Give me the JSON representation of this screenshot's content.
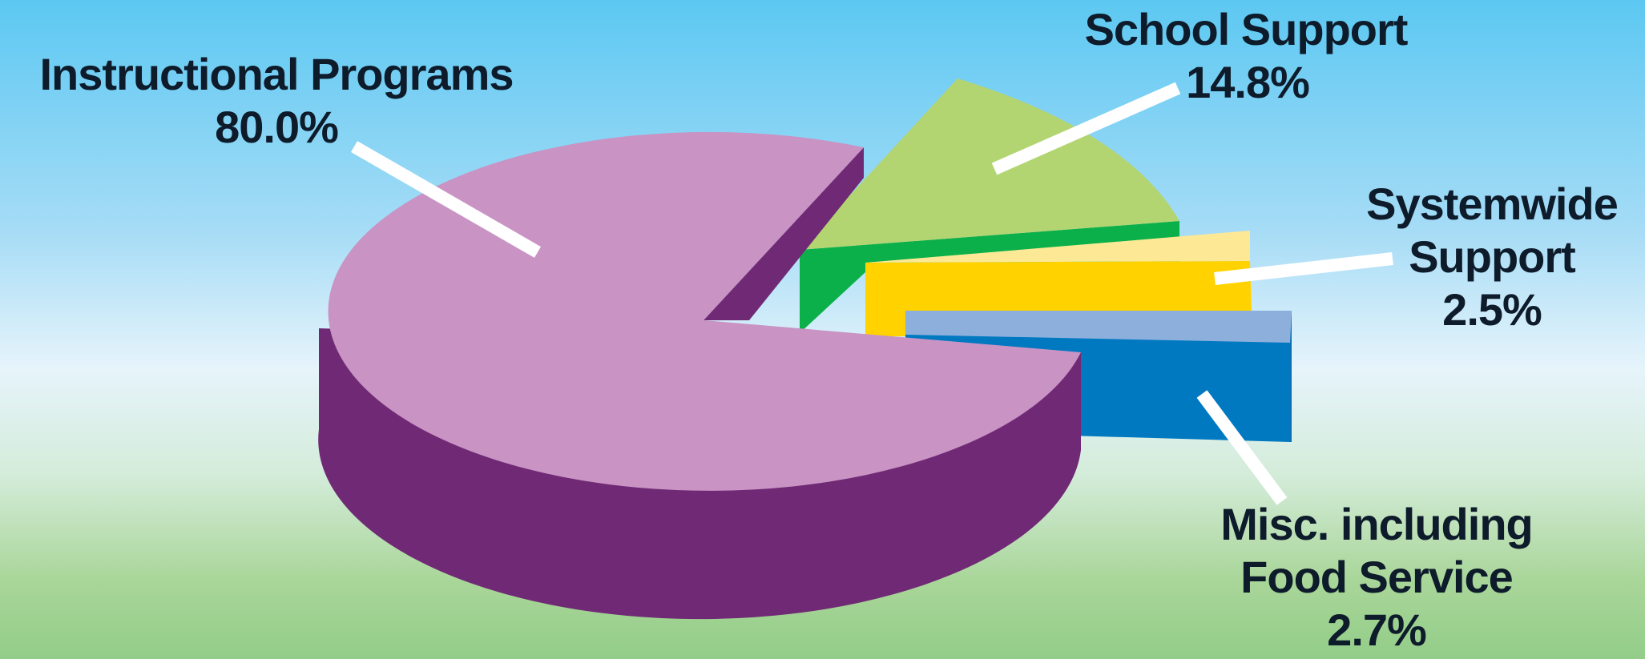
{
  "chart_data": {
    "type": "pie",
    "title": "",
    "three_d": true,
    "exploded": true,
    "legend": "none",
    "slices": [
      {
        "label": "Instructional Programs",
        "value": 80.0,
        "value_label": "80.0%",
        "top_color": "#c993c4",
        "side_color": "#702a75"
      },
      {
        "label": "School Support",
        "value": 14.8,
        "value_label": "14.8%",
        "top_color": "#b2d572",
        "side_color": "#0cb04a"
      },
      {
        "label": "Systemwide Support",
        "value": 2.5,
        "value_label": "2.5%",
        "top_color": "#fde995",
        "side_color": "#ffd200"
      },
      {
        "label": "Misc. including Food Service",
        "value": 2.7,
        "value_label": "2.7%",
        "top_color": "#8cafdc",
        "side_color": "#0079c1"
      }
    ]
  },
  "labels": {
    "instructional": {
      "line1": "Instructional Programs",
      "value": "80.0%"
    },
    "school": {
      "line1": "School Support",
      "value": "14.8%"
    },
    "systemwide": {
      "line1": "Systemwide",
      "line2": "Support",
      "value": "2.5%"
    },
    "misc": {
      "line1": "Misc. including",
      "line2": "Food Service",
      "value": "2.7%"
    }
  }
}
